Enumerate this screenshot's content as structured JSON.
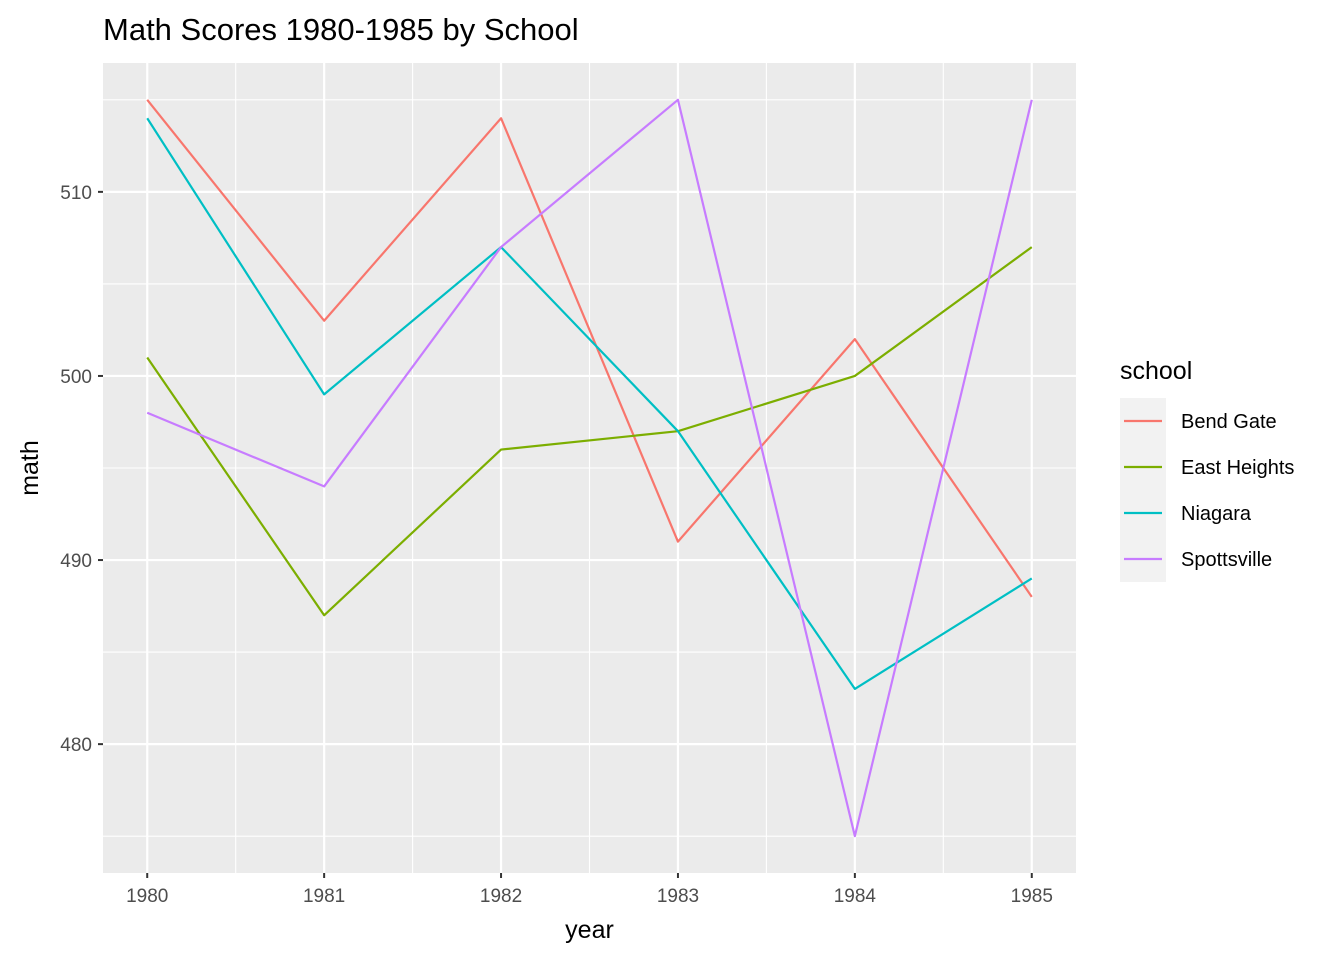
{
  "chart_data": {
    "type": "line",
    "title": "Math Scores 1980-1985 by School",
    "xlabel": "year",
    "ylabel": "math",
    "x": [
      1980,
      1981,
      1982,
      1983,
      1984,
      1985
    ],
    "x_tick_labels": [
      "1980",
      "1981",
      "1982",
      "1983",
      "1984",
      "1985"
    ],
    "y_ticks": [
      480,
      490,
      500,
      510
    ],
    "y_tick_labels": [
      "480",
      "490",
      "500",
      "510"
    ],
    "xlim": [
      1979.75,
      1985.25
    ],
    "ylim": [
      473,
      517
    ],
    "grid": true,
    "legend": {
      "title": "school",
      "placement": "right"
    },
    "series": [
      {
        "name": "Bend Gate",
        "color": "#F8766D",
        "values": [
          515,
          503,
          514,
          491,
          502,
          488
        ]
      },
      {
        "name": "East Heights",
        "color": "#7CAE00",
        "values": [
          501,
          487,
          496,
          497,
          500,
          507
        ]
      },
      {
        "name": "Niagara",
        "color": "#00BFC4",
        "values": [
          514,
          499,
          507,
          497,
          483,
          489
        ]
      },
      {
        "name": "Spottsville",
        "color": "#C77CFF",
        "values": [
          498,
          494,
          507,
          515,
          475,
          515
        ]
      }
    ]
  }
}
